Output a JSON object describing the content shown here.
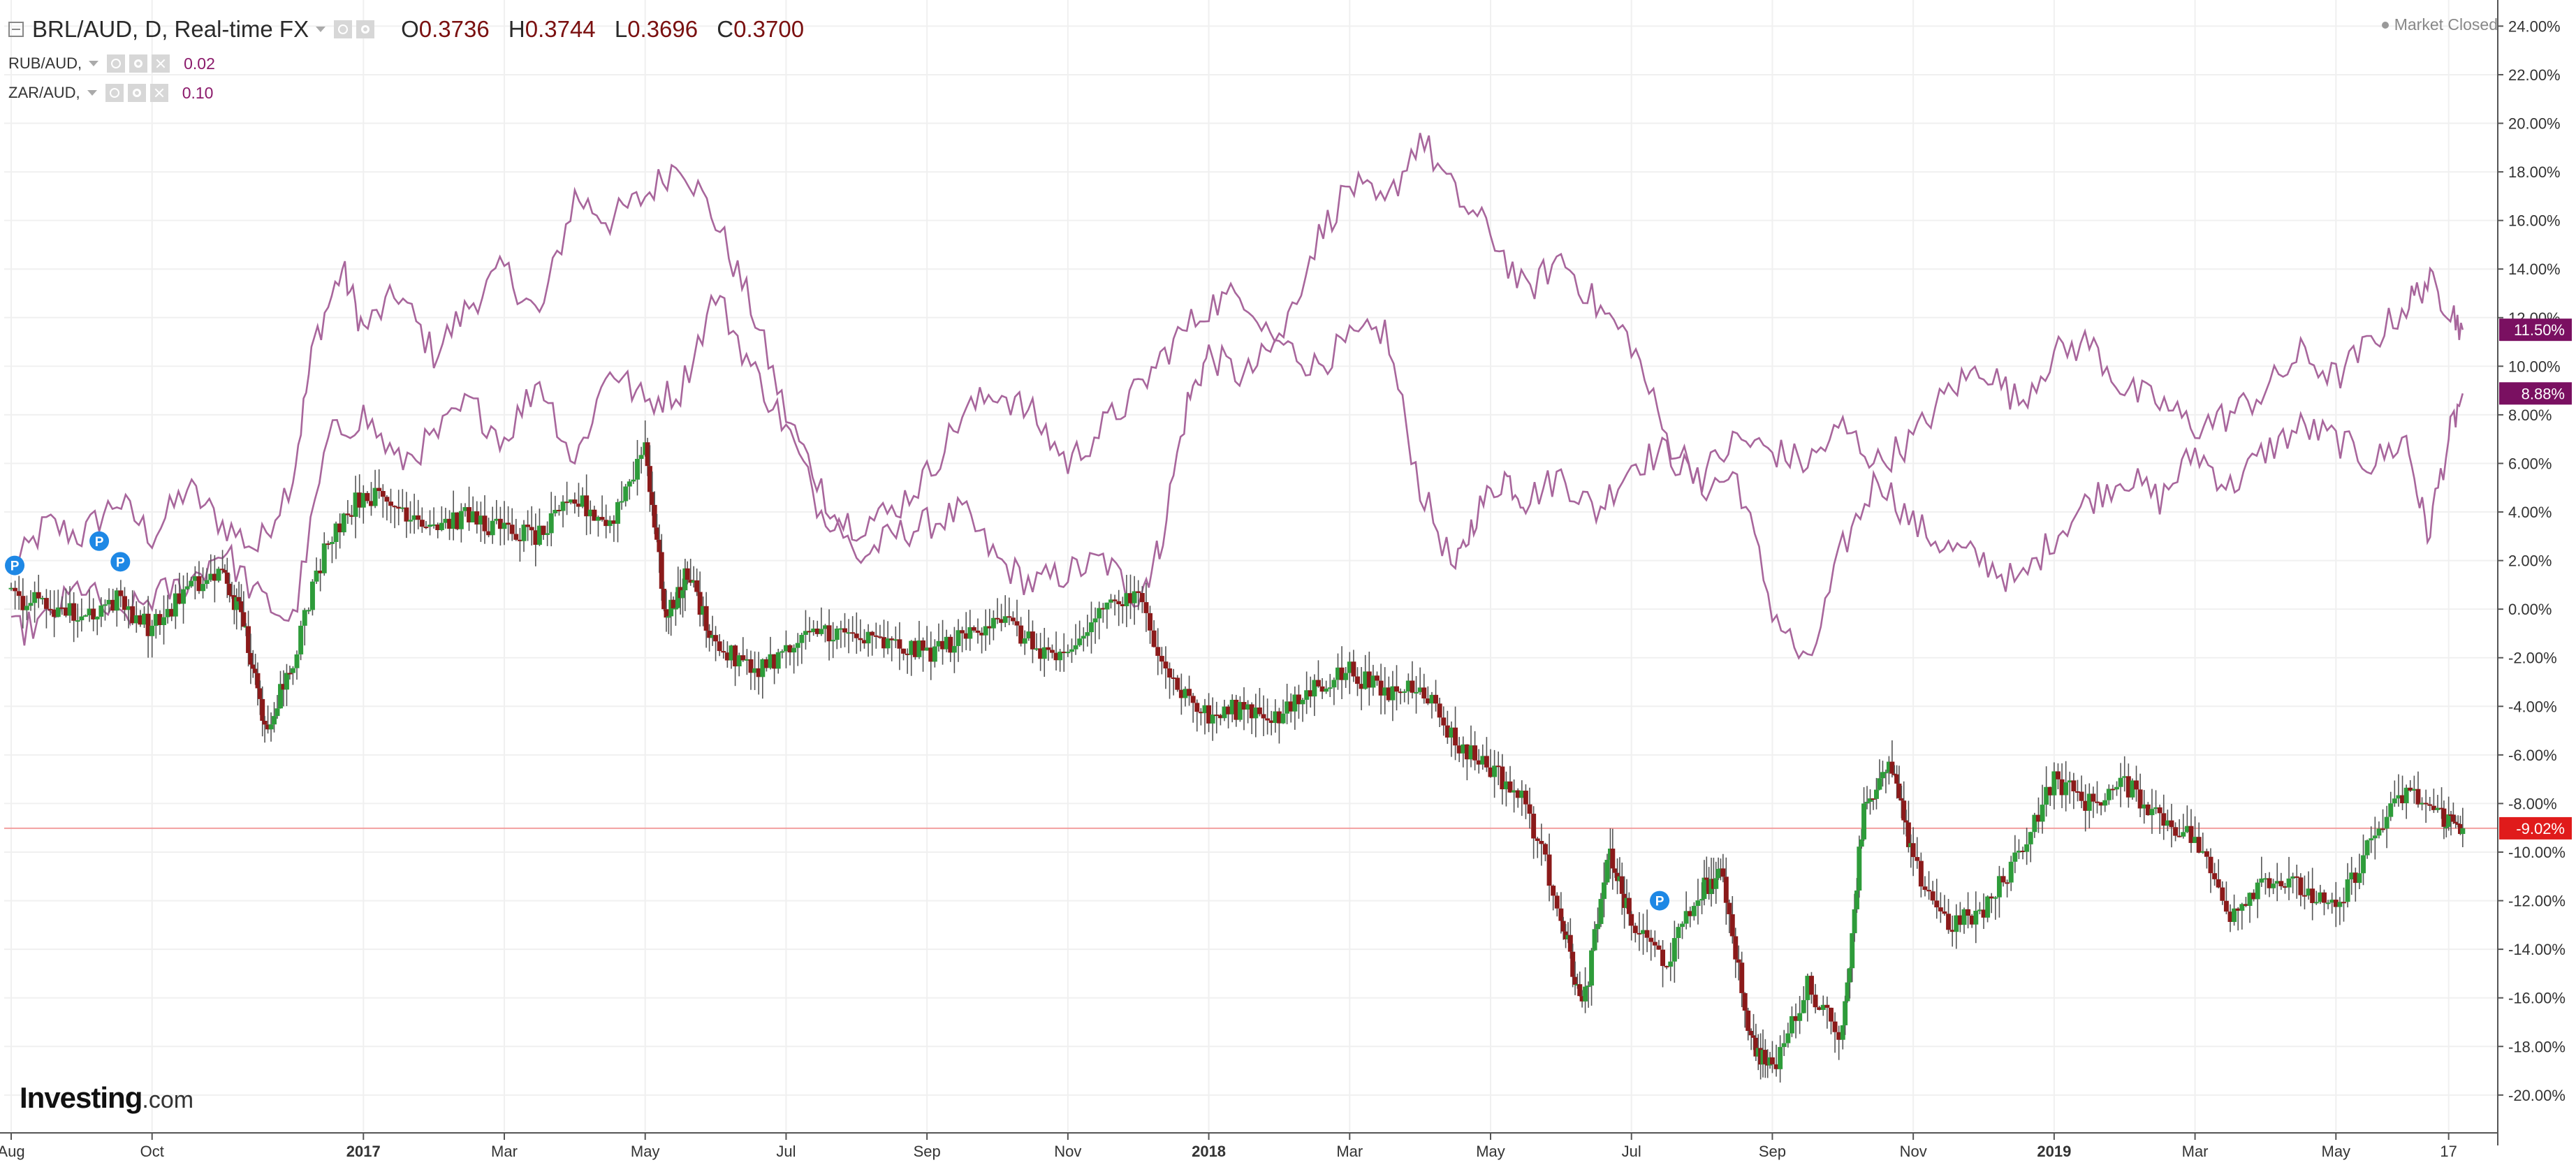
{
  "header": {
    "symbol_line": "BRL/AUD, D, Real-time FX",
    "ohlc": [
      {
        "k": "O",
        "v": "0.3736"
      },
      {
        "k": "H",
        "v": "0.3744"
      },
      {
        "k": "L",
        "v": "0.3696"
      },
      {
        "k": "C",
        "v": "0.3700"
      }
    ],
    "overlays": [
      {
        "label": "RUB/AUD,",
        "value": "0.02"
      },
      {
        "label": "ZAR/AUD,",
        "value": "0.10"
      }
    ],
    "market_status": "Market Closed"
  },
  "logo": {
    "brand": "Investing",
    "tld": ".com"
  },
  "colors": {
    "up_candle": "#2e9c3a",
    "down_candle": "#8b1a1a",
    "wick": "#555555",
    "overlay_line": "#a8669c",
    "grid": "#f0f0f0",
    "current_line": "#f2a0a0",
    "badge_brl": "#e01b1b",
    "badge_overlay": "#7a1061",
    "pin": "#1e88e5"
  },
  "chart_data": {
    "type": "line",
    "ylim": [
      -21.5,
      24.5
    ],
    "y_ticks": [
      "24.00%",
      "22.00%",
      "20.00%",
      "18.00%",
      "16.00%",
      "14.00%",
      "12.00%",
      "10.00%",
      "8.00%",
      "6.00%",
      "4.00%",
      "2.00%",
      "0.00%",
      "-2.00%",
      "-4.00%",
      "-6.00%",
      "-8.00%",
      "-10.00%",
      "-12.00%",
      "-14.00%",
      "-16.00%",
      "-18.00%",
      "-20.00%"
    ],
    "y_tick_values": [
      24,
      22,
      20,
      18,
      16,
      14,
      12,
      10,
      8,
      6,
      4,
      2,
      0,
      -2,
      -4,
      -6,
      -8,
      -10,
      -12,
      -14,
      -16,
      -18,
      -20
    ],
    "x_ticks": [
      {
        "label": "Aug",
        "pos": 0,
        "bold": false
      },
      {
        "label": "Oct",
        "pos": 2,
        "bold": false
      },
      {
        "label": "2017",
        "pos": 5,
        "bold": true
      },
      {
        "label": "Mar",
        "pos": 7,
        "bold": false
      },
      {
        "label": "May",
        "pos": 9,
        "bold": false
      },
      {
        "label": "Jul",
        "pos": 11,
        "bold": false
      },
      {
        "label": "Sep",
        "pos": 13,
        "bold": false
      },
      {
        "label": "Nov",
        "pos": 15,
        "bold": false
      },
      {
        "label": "2018",
        "pos": 17,
        "bold": true
      },
      {
        "label": "Mar",
        "pos": 19,
        "bold": false
      },
      {
        "label": "May",
        "pos": 21,
        "bold": false
      },
      {
        "label": "Jul",
        "pos": 23,
        "bold": false
      },
      {
        "label": "Sep",
        "pos": 25,
        "bold": false
      },
      {
        "label": "Nov",
        "pos": 27,
        "bold": false
      },
      {
        "label": "2019",
        "pos": 29,
        "bold": true
      },
      {
        "label": "Mar",
        "pos": 31,
        "bold": false
      },
      {
        "label": "May",
        "pos": 33,
        "bold": false
      },
      {
        "label": "17",
        "pos": 34.6,
        "bold": false
      }
    ],
    "x_range": [
      0,
      35
    ],
    "series": [
      {
        "name": "BRL/AUD",
        "kind": "candles",
        "x": [
          0,
          0.5,
          1,
          1.5,
          2,
          2.5,
          3,
          3.3,
          3.6,
          4,
          4.5,
          5,
          5.5,
          6,
          6.5,
          7,
          7.5,
          8,
          8.5,
          9,
          9.3,
          9.6,
          10,
          10.5,
          11,
          11.5,
          12,
          12.5,
          13,
          13.5,
          14,
          14.5,
          15,
          15.5,
          16,
          16.5,
          17,
          17.5,
          18,
          18.5,
          19,
          19.5,
          20,
          20.5,
          21,
          21.5,
          22,
          22.3,
          22.7,
          23,
          23.5,
          24,
          24.3,
          24.7,
          25,
          25.5,
          26,
          26.3,
          26.7,
          27,
          27.5,
          28,
          28.5,
          29,
          29.5,
          30,
          30.5,
          31,
          31.5,
          32,
          32.5,
          33,
          33.5,
          34,
          34.5,
          34.8
        ],
        "values": [
          0.5,
          0.2,
          -0.3,
          0.4,
          -0.8,
          0.8,
          1.5,
          -0.5,
          -5,
          -2,
          3,
          4.8,
          4.2,
          3.5,
          3.8,
          3.2,
          3.0,
          4.5,
          3.5,
          6.8,
          -0.5,
          1.5,
          -1.5,
          -2.5,
          -1.8,
          -0.8,
          -1.2,
          -1.5,
          -1.8,
          -1.2,
          -0.2,
          -1.5,
          -2.2,
          0.2,
          0.4,
          -3,
          -4.5,
          -4.0,
          -4.5,
          -3.2,
          -2.5,
          -3.5,
          -3.0,
          -5.5,
          -6.5,
          -8.0,
          -12.5,
          -16.5,
          -10.0,
          -13.0,
          -14.5,
          -11.5,
          -11.0,
          -17.8,
          -19.0,
          -15.5,
          -17.5,
          -8.0,
          -6.5,
          -10.5,
          -13.0,
          -12.5,
          -10.0,
          -7.0,
          -8.0,
          -7.2,
          -8.5,
          -9.5,
          -12.5,
          -11.0,
          -11.5,
          -12.5,
          -9.5,
          -7.5,
          -8.5,
          -9.02
        ]
      },
      {
        "name": "RUB/AUD",
        "kind": "line",
        "x": [
          0,
          0.5,
          1,
          1.5,
          2,
          2.5,
          3,
          3.5,
          4,
          4.3,
          4.7,
          5,
          5.5,
          6,
          6.5,
          7,
          7.5,
          8,
          8.5,
          9,
          9.5,
          10,
          10.5,
          11,
          11.5,
          12,
          12.5,
          13,
          13.5,
          14,
          14.5,
          15,
          15.5,
          16,
          16.3,
          16.7,
          17,
          17.5,
          18,
          18.5,
          19,
          19.5,
          20,
          20.5,
          20.8,
          21.2,
          21.5,
          22,
          22.5,
          23,
          23.5,
          24,
          24.5,
          25,
          25.5,
          26,
          26.5,
          27,
          27.5,
          28,
          28.5,
          29,
          29.5,
          30,
          30.5,
          31,
          31.5,
          32,
          32.5,
          33,
          33.5,
          34,
          34.3,
          34.6,
          34.8
        ],
        "values": [
          1.5,
          3.5,
          3.0,
          4.5,
          3.0,
          5.0,
          3.5,
          2.5,
          5.5,
          11.0,
          14.0,
          11.5,
          13.0,
          10.5,
          12.5,
          14.0,
          12.0,
          17.0,
          16.0,
          17.0,
          18.5,
          16.0,
          12.5,
          8.0,
          5.0,
          2.0,
          3.0,
          3.5,
          4.0,
          2.0,
          1.0,
          1.5,
          2.0,
          0.5,
          2.5,
          8.5,
          10.5,
          9.5,
          11.0,
          10.0,
          11.0,
          11.5,
          5.0,
          1.5,
          4.0,
          5.5,
          4.5,
          5.5,
          4.0,
          6.0,
          6.5,
          5.0,
          5.5,
          0.0,
          -2.5,
          2.5,
          5.5,
          3.5,
          2.5,
          2.0,
          1.0,
          3.0,
          4.5,
          5.5,
          4.5,
          6.5,
          5.0,
          6.5,
          7.5,
          7.0,
          6.0,
          7.0,
          3.0,
          7.0,
          8.88
        ]
      },
      {
        "name": "ZAR/AUD",
        "kind": "line",
        "x": [
          0,
          0.5,
          1,
          1.5,
          2,
          2.5,
          3,
          3.5,
          4,
          4.5,
          5,
          5.5,
          6,
          6.5,
          7,
          7.5,
          8,
          8.5,
          9,
          9.5,
          10,
          10.5,
          11,
          11.5,
          12,
          12.5,
          13,
          13.5,
          14,
          14.5,
          15,
          15.5,
          16,
          16.5,
          17,
          17.5,
          18,
          18.5,
          19,
          19.5,
          20,
          20.5,
          21,
          21.5,
          22,
          22.5,
          23,
          23.5,
          24,
          24.5,
          25,
          25.5,
          26,
          26.5,
          27,
          27.5,
          28,
          28.5,
          29,
          29.5,
          30,
          30.5,
          31,
          31.5,
          32,
          32.5,
          33,
          33.5,
          34,
          34.3,
          34.6,
          34.8
        ],
        "values": [
          -1.0,
          -0.5,
          1.0,
          -0.5,
          0.5,
          1.0,
          2.5,
          0.5,
          -0.5,
          7.0,
          8.0,
          6.0,
          7.0,
          8.5,
          7.0,
          9.5,
          6.0,
          10.0,
          8.5,
          9.0,
          13.0,
          10.0,
          7.5,
          4.0,
          3.5,
          4.0,
          5.5,
          8.0,
          9.0,
          8.0,
          6.0,
          7.5,
          9.0,
          11.0,
          12.5,
          13.0,
          11.0,
          15.0,
          17.5,
          16.5,
          19.5,
          17.0,
          15.5,
          13.0,
          14.5,
          12.5,
          11.0,
          7.0,
          5.5,
          7.0,
          6.5,
          6.0,
          7.5,
          6.0,
          7.0,
          9.0,
          10.0,
          8.5,
          10.5,
          11.0,
          9.0,
          8.5,
          7.5,
          8.0,
          9.0,
          10.5,
          9.5,
          11.0,
          12.5,
          13.5,
          12.5,
          11.5
        ]
      }
    ],
    "current_labels": [
      {
        "series": "ZAR/AUD",
        "text": "11.50%",
        "value": 11.5
      },
      {
        "series": "RUB/AUD",
        "text": "8.88%",
        "value": 8.88
      },
      {
        "series": "BRL/AUD",
        "text": "-9.02%",
        "value": -9.02
      }
    ],
    "markers": [
      {
        "label": "P",
        "x": 0.05,
        "value": 1.8
      },
      {
        "label": "P",
        "x": 1.25,
        "value": 2.8
      },
      {
        "label": "P",
        "x": 1.55,
        "value": 1.95
      },
      {
        "label": "P",
        "x": 23.4,
        "value": -12.0
      }
    ]
  }
}
